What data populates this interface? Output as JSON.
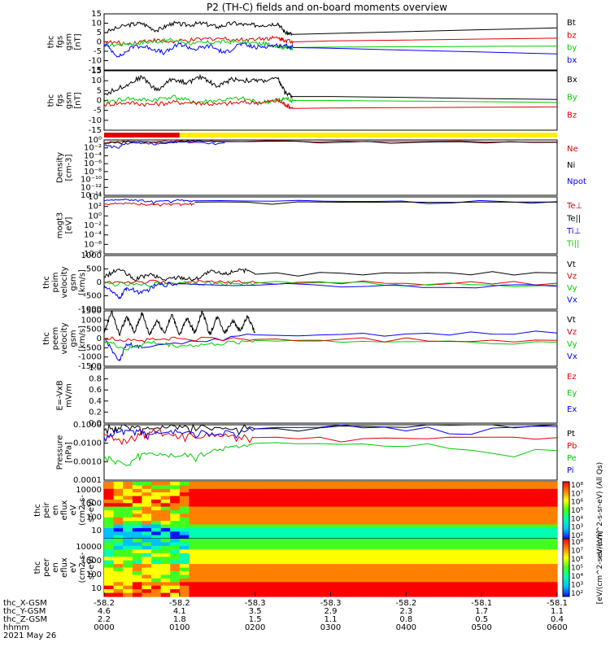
{
  "title": "P2 (TH-C) fields and on-board moments overview",
  "colors": {
    "black": "#000000",
    "red": "#e00000",
    "green": "#00cc00",
    "blue": "#0000ff",
    "yellow": "#ffee00"
  },
  "chart_data": [
    {
      "id": "fgs-gsm",
      "type": "line",
      "ylabel": [
        "thc",
        "fgs",
        "gsm",
        "[nT]"
      ],
      "yticks": [
        "-15",
        "-10",
        "-5",
        "0",
        "5",
        "10",
        "15"
      ],
      "legend": [
        {
          "name": "Bt",
          "color": "#000000"
        },
        {
          "name": "bz",
          "color": "#e00000"
        },
        {
          "name": "by",
          "color": "#00cc00"
        },
        {
          "name": "bx",
          "color": "#0000ff"
        }
      ],
      "series": [
        {
          "name": "Bt",
          "color": "#000000",
          "x": [
            0.0,
            0.3,
            0.5,
            0.7,
            0.9,
            1.1,
            1.3,
            1.5,
            1.7,
            1.9,
            2.1,
            2.3,
            2.4,
            2.5,
            3.0,
            4.0,
            5.0,
            6.0
          ],
          "y": [
            5,
            9,
            10,
            6,
            10,
            9,
            10,
            8,
            10,
            9,
            9,
            10,
            5,
            4,
            4.5,
            5.5,
            6.5,
            7.5
          ]
        },
        {
          "name": "bz",
          "color": "#e00000",
          "x": [
            0.0,
            0.3,
            0.6,
            0.9,
            1.2,
            1.5,
            1.8,
            2.1,
            2.3,
            2.4,
            2.5,
            3.0,
            4.0,
            5.0,
            6.0
          ],
          "y": [
            0,
            -1,
            1,
            0,
            1,
            2,
            1,
            2,
            2,
            1,
            0,
            0.5,
            1.0,
            1.5,
            2.0
          ]
        },
        {
          "name": "by",
          "color": "#00cc00",
          "x": [
            0.0,
            0.3,
            0.6,
            0.9,
            1.2,
            1.5,
            1.8,
            2.1,
            2.3,
            2.4,
            2.5,
            3.0,
            4.0,
            5.0,
            6.0
          ],
          "y": [
            -2,
            -1,
            0,
            1,
            -1,
            0,
            0,
            -1,
            -2,
            -3,
            -3,
            -2.8,
            -2.6,
            -2.4,
            -2.2
          ]
        },
        {
          "name": "bx",
          "color": "#0000ff",
          "x": [
            0.0,
            0.2,
            0.4,
            0.6,
            0.8,
            1.0,
            1.2,
            1.4,
            1.6,
            1.8,
            2.0,
            2.2,
            2.4,
            2.5,
            3.0,
            4.0,
            5.0,
            6.0
          ],
          "y": [
            -1,
            -8,
            -2,
            -3,
            -6,
            -1,
            -4,
            -2,
            -6,
            -1,
            -3,
            -2,
            -2,
            -3,
            -3.4,
            -4.4,
            -5.4,
            -6.4
          ]
        }
      ]
    },
    {
      "id": "fgs-gsm-comp",
      "type": "line",
      "ylabel": [
        "thc",
        "fgs",
        "gsm",
        "[nT]"
      ],
      "yticks": [
        "-15",
        "-10",
        "-5",
        "0",
        "5",
        "10",
        "15"
      ],
      "legend": [
        {
          "name": "Bx",
          "color": "#000000"
        },
        {
          "name": "By",
          "color": "#00cc00"
        },
        {
          "name": "Bz",
          "color": "#e00000"
        }
      ],
      "series": [
        {
          "name": "Bx",
          "color": "#000000",
          "x": [
            0.0,
            0.3,
            0.5,
            0.7,
            0.9,
            1.1,
            1.3,
            1.5,
            1.7,
            1.9,
            2.1,
            2.3,
            2.4,
            2.5,
            3.0,
            4.0,
            5.0,
            6.0
          ],
          "y": [
            3,
            8,
            12,
            5,
            11,
            9,
            12,
            7,
            11,
            10,
            10,
            11,
            4,
            2,
            2,
            1.5,
            1,
            0.5
          ]
        },
        {
          "name": "By",
          "color": "#00cc00",
          "x": [
            0.0,
            0.3,
            0.6,
            0.9,
            1.2,
            1.5,
            1.8,
            2.1,
            2.3,
            2.4,
            2.5,
            3.0,
            4.0,
            5.0,
            6.0
          ],
          "y": [
            -1,
            1,
            0,
            2,
            -1,
            0,
            1,
            -1,
            0,
            1,
            0,
            0,
            -0.3,
            -0.6,
            -1
          ]
        },
        {
          "name": "Bz",
          "color": "#e00000",
          "x": [
            0.0,
            0.3,
            0.6,
            0.9,
            1.2,
            1.5,
            1.8,
            2.1,
            2.3,
            2.4,
            2.5,
            3.0,
            4.0,
            5.0,
            6.0
          ],
          "y": [
            -2,
            -1,
            -2,
            -1,
            -1,
            -2,
            -1,
            -1,
            0,
            -2,
            -4,
            -3.8,
            -3.6,
            -3.4,
            -3.2
          ]
        }
      ]
    },
    {
      "id": "density",
      "type": "line",
      "yscale": "log",
      "ylabel": [
        "Density",
        "[cm-3]"
      ],
      "yticks": [
        "10⁰",
        "10⁻²",
        "10⁻⁴",
        "10⁻⁶",
        "10⁻⁸",
        "10⁻¹⁰",
        "10⁻¹²",
        "10⁻¹⁴"
      ],
      "legend": [
        {
          "name": "Ne",
          "color": "#e00000"
        },
        {
          "name": "Ni",
          "color": "#000000"
        },
        {
          "name": "Npot",
          "color": "#0000ff"
        }
      ],
      "series": [
        {
          "name": "Ne",
          "color": "#e00000",
          "x": [
            0.0,
            0.3,
            0.6,
            1.0,
            1.5,
            6.0
          ],
          "y": [
            0.2,
            0.5,
            0.3,
            0.6,
            0.5,
            0.3
          ]
        },
        {
          "name": "Ni",
          "color": "#000000",
          "x": [
            0.0,
            0.4,
            0.8,
            1.2,
            1.6,
            6.0
          ],
          "y": [
            0.15,
            0.4,
            0.2,
            0.5,
            0.4,
            0.25
          ]
        },
        {
          "name": "Npot",
          "color": "#0000ff",
          "x": [
            0.0,
            0.2,
            0.4,
            0.7,
            1.0,
            1.6
          ],
          "y": [
            0.05,
            0.01,
            0.2,
            0.1,
            0.3,
            0.2
          ]
        }
      ]
    },
    {
      "id": "mom",
      "type": "line",
      "yscale": "log",
      "ylabel": [
        "mogt3",
        "[eV]"
      ],
      "yticks": [
        "10⁴",
        "10²",
        "10⁰",
        "10⁻²",
        "10⁻⁴",
        "10⁻⁶",
        "10⁻⁸"
      ],
      "legend": [
        {
          "name": "Te⊥",
          "color": "#e00000"
        },
        {
          "name": "Te||",
          "color": "#000000"
        },
        {
          "name": "Ti⊥",
          "color": "#0000ff"
        },
        {
          "name": "Ti||",
          "color": "#00cc00"
        }
      ],
      "series": [
        {
          "name": "Te⊥",
          "color": "#e00000",
          "x": [
            0.0,
            0.3,
            0.6,
            1.0,
            1.2
          ],
          "y": [
            300,
            500,
            200,
            400,
            300
          ]
        },
        {
          "name": "Ti⊥",
          "color": "#0000ff",
          "x": [
            0.0,
            0.3,
            0.6,
            1.0,
            1.2,
            6.0
          ],
          "y": [
            1500,
            3000,
            1000,
            2000,
            1500,
            1000
          ]
        },
        {
          "name": "Te||",
          "color": "#000000",
          "x": [
            1.2,
            6.0
          ],
          "y": [
            800,
            800
          ]
        }
      ]
    },
    {
      "id": "peim",
      "type": "line",
      "ylabel": [
        "thc",
        "peim",
        "velocity",
        "gsm",
        "[km/s]"
      ],
      "yticks": [
        "-1000",
        "-500",
        "0",
        "500",
        "1000"
      ],
      "legend": [
        {
          "name": "Vt",
          "color": "#000000"
        },
        {
          "name": "Vz",
          "color": "#e00000"
        },
        {
          "name": "Vy",
          "color": "#00cc00"
        },
        {
          "name": "Vx",
          "color": "#0000ff"
        }
      ],
      "series": [
        {
          "name": "Vt",
          "color": "#000000",
          "x": [
            0.0,
            0.2,
            0.4,
            0.6,
            0.8,
            1.0,
            1.2,
            1.4,
            1.6,
            1.8,
            2.0,
            6.0
          ],
          "y": [
            200,
            500,
            100,
            300,
            100,
            200,
            100,
            400,
            300,
            500,
            300,
            350
          ]
        },
        {
          "name": "Vz",
          "color": "#e00000",
          "x": [
            0.0,
            0.5,
            1.0,
            1.5,
            2.0,
            6.0
          ],
          "y": [
            0,
            20,
            -20,
            10,
            0,
            -30
          ]
        },
        {
          "name": "Vy",
          "color": "#00cc00",
          "x": [
            0.0,
            0.5,
            1.0,
            1.5,
            2.0,
            6.0
          ],
          "y": [
            -50,
            -100,
            0,
            -50,
            -30,
            -100
          ]
        },
        {
          "name": "Vx",
          "color": "#0000ff",
          "x": [
            0.0,
            0.2,
            0.3,
            0.5,
            0.7,
            1.0,
            6.0
          ],
          "y": [
            -100,
            -600,
            -200,
            -400,
            -100,
            -50,
            -150
          ]
        }
      ]
    },
    {
      "id": "peem",
      "type": "line",
      "ylabel": [
        "thc",
        "peem",
        "velocity",
        "gsm",
        "[km/s]"
      ],
      "yticks": [
        "-1500",
        "-1000",
        "-500",
        "0",
        "500",
        "1000",
        "1500"
      ],
      "legend": [
        {
          "name": "Vt",
          "color": "#000000"
        },
        {
          "name": "Vz",
          "color": "#e00000"
        },
        {
          "name": "Vy",
          "color": "#00cc00"
        },
        {
          "name": "Vx",
          "color": "#0000ff"
        }
      ],
      "series": [
        {
          "name": "Vt",
          "color": "#000000",
          "x": [
            0.0,
            0.1,
            0.2,
            0.3,
            0.4,
            0.5,
            0.6,
            0.7,
            0.8,
            0.9,
            1.0,
            1.1,
            1.2,
            1.3,
            1.4,
            1.5,
            1.6,
            1.7,
            1.8,
            1.9,
            2.0
          ],
          "y": [
            300,
            1500,
            200,
            1200,
            300,
            1400,
            200,
            1000,
            300,
            1300,
            200,
            1100,
            300,
            1500,
            200,
            1200,
            300,
            1000,
            400,
            1200,
            300
          ]
        },
        {
          "name": "Vx",
          "color": "#0000ff",
          "x": [
            0.0,
            0.2,
            0.3,
            0.5,
            2.0,
            6.0
          ],
          "y": [
            0,
            -1200,
            -300,
            -500,
            200,
            300
          ]
        },
        {
          "name": "Vy",
          "color": "#00cc00",
          "x": [
            0.0,
            0.3,
            0.6,
            1.0,
            1.5,
            2.0,
            6.0
          ],
          "y": [
            -100,
            -600,
            -200,
            -400,
            -300,
            -100,
            -200
          ]
        },
        {
          "name": "Vz",
          "color": "#e00000",
          "x": [
            0.0,
            0.5,
            1.0,
            2.0,
            6.0
          ],
          "y": [
            0,
            -100,
            0,
            -50,
            -100
          ]
        }
      ]
    },
    {
      "id": "efield",
      "type": "line",
      "ylabel": [
        "E=-VxB",
        "mV/m"
      ],
      "yticks": [
        "0.0",
        "0.2",
        "0.4",
        "0.6",
        "0.8",
        "1.0"
      ],
      "legend": [
        {
          "name": "Ez",
          "color": "#e00000"
        },
        {
          "name": "Ey",
          "color": "#00cc00"
        },
        {
          "name": "Ex",
          "color": "#0000ff"
        }
      ],
      "series": []
    },
    {
      "id": "pressure",
      "type": "line",
      "yscale": "log",
      "ylabel": [
        "Pressure",
        "[nPa]"
      ],
      "yticks": [
        "0.1000",
        "0.0100",
        "0.0010",
        "0.0001"
      ],
      "legend": [
        {
          "name": "Pt",
          "color": "#000000"
        },
        {
          "name": "Pb",
          "color": "#e00000"
        },
        {
          "name": "Pe",
          "color": "#00cc00"
        },
        {
          "name": "Pi",
          "color": "#0000ff"
        }
      ],
      "series": [
        {
          "name": "Pt",
          "color": "#000000",
          "x": [
            0.0,
            0.3,
            0.6,
            1.0,
            1.5,
            2.0,
            6.0
          ],
          "y": [
            0.05,
            0.08,
            0.06,
            0.09,
            0.07,
            0.06,
            0.1
          ]
        },
        {
          "name": "Pb",
          "color": "#e00000",
          "x": [
            0.0,
            0.3,
            0.6,
            1.0,
            1.5,
            2.0,
            6.0
          ],
          "y": [
            0.03,
            0.01,
            0.04,
            0.02,
            0.03,
            0.02,
            0.02
          ]
        },
        {
          "name": "Pe",
          "color": "#00cc00",
          "x": [
            0.0,
            0.3,
            0.6,
            1.0,
            1.5,
            2.0,
            6.0
          ],
          "y": [
            0.002,
            0.0006,
            0.003,
            0.002,
            0.004,
            0.01,
            0.004
          ]
        },
        {
          "name": "Pi",
          "color": "#0000ff",
          "x": [
            0.0,
            0.3,
            0.6,
            1.0,
            1.5,
            2.0,
            6.0
          ],
          "y": [
            0.02,
            0.05,
            0.03,
            0.04,
            0.03,
            0.06,
            0.08
          ]
        }
      ]
    },
    {
      "id": "peir",
      "type": "heatmap",
      "ylabel": [
        "thc",
        "peir",
        "en",
        "eflux",
        "eV",
        "(cm2-s-",
        "sr-eV)"
      ],
      "yticks": [
        "10000",
        "1000",
        "100",
        "10"
      ],
      "colorbar": {
        "ticks": [
          "10⁸",
          "10⁷",
          "10⁶",
          "10⁵",
          "10⁴",
          "10³",
          "10²"
        ],
        "label": "eV/(cm^2-s-sr-eV) (All Qs)"
      }
    },
    {
      "id": "peer",
      "type": "heatmap",
      "ylabel": [
        "thc",
        "peer",
        "en",
        "eflux",
        "eV",
        "(cm2-s-",
        "sr-eV)"
      ],
      "yticks": [
        "10000",
        "1000",
        "100",
        "10"
      ],
      "colorbar": {
        "ticks": [
          "10⁸",
          "10⁷",
          "10⁶",
          "10⁵",
          "10⁴",
          "10³",
          "10²"
        ],
        "label": "[eV/(cm^2-s-sr-eV)]"
      }
    }
  ],
  "status_bar": {
    "segments": [
      {
        "color": "#e00000",
        "from": 0,
        "to": 1.0
      },
      {
        "color": "#ffee00",
        "from": 1.0,
        "to": 6.0
      }
    ]
  },
  "xaxis": {
    "rows": [
      {
        "label": "thc_X-GSM",
        "values": [
          "-58.2",
          "-58.2",
          "-58.3",
          "-58.3",
          "-58.2",
          "-58.1",
          "-58.1"
        ]
      },
      {
        "label": "thc_Y-GSM",
        "values": [
          "4.6",
          "4.1",
          "3.5",
          "2.9",
          "2.3",
          "1.7",
          "1.1"
        ]
      },
      {
        "label": "thc_Z-GSM",
        "values": [
          "2.2",
          "1.8",
          "1.5",
          "1.1",
          "0.8",
          "0.5",
          "0.4"
        ]
      },
      {
        "label": "hhmm",
        "values": [
          "0000",
          "0100",
          "0200",
          "0300",
          "0400",
          "0500",
          "0600"
        ]
      }
    ],
    "date": "2021 May 26"
  }
}
